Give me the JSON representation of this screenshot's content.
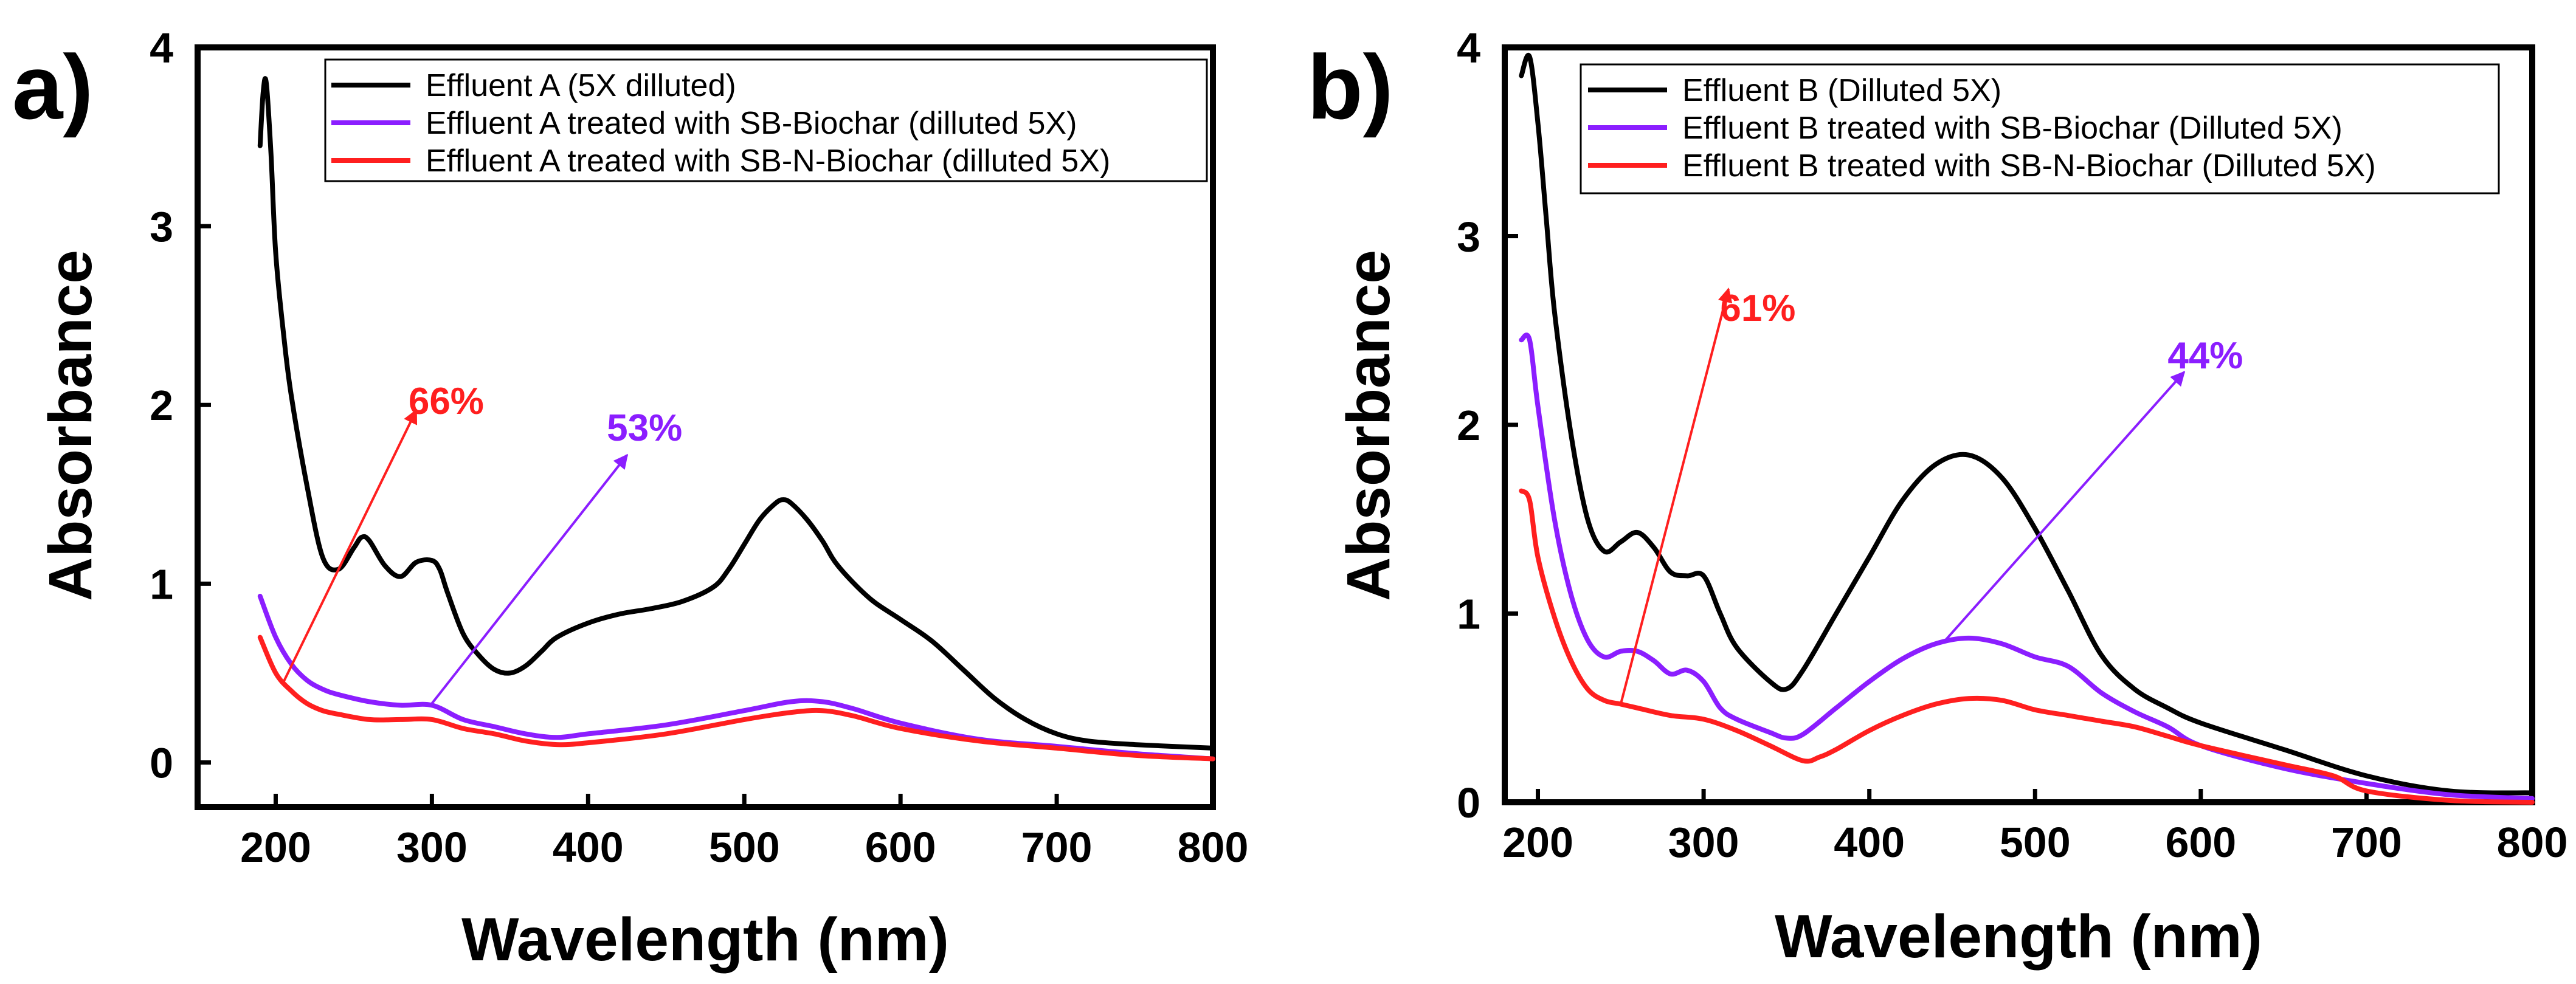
{
  "colors": {
    "black": "#000000",
    "purple": "#8B1EFF",
    "red": "#FF1F1F"
  },
  "chart_data": [
    {
      "type": "line",
      "panel_label": "a)",
      "xlabel": "Wavelength (nm)",
      "ylabel": "Absorbance",
      "xlim": [
        150,
        800
      ],
      "ylim": [
        -0.25,
        4
      ],
      "xticks": [
        200,
        300,
        400,
        500,
        600,
        700,
        800
      ],
      "yticks": [
        0,
        1,
        2,
        3,
        4
      ],
      "legend_position": "top-right",
      "series": [
        {
          "name": "Effluent A (5X dilluted)",
          "color": "#000000",
          "x": [
            190,
            192,
            194,
            197,
            200,
            205,
            210,
            220,
            230,
            240,
            250,
            255,
            260,
            270,
            280,
            290,
            300,
            305,
            310,
            320,
            330,
            340,
            350,
            360,
            370,
            380,
            400,
            420,
            440,
            460,
            480,
            490,
            500,
            510,
            520,
            525,
            530,
            540,
            550,
            560,
            580,
            600,
            620,
            640,
            660,
            680,
            700,
            720,
            750,
            800
          ],
          "y": [
            3.45,
            3.75,
            3.8,
            3.4,
            2.85,
            2.4,
            2.05,
            1.55,
            1.15,
            1.08,
            1.2,
            1.26,
            1.24,
            1.1,
            1.04,
            1.12,
            1.13,
            1.08,
            0.95,
            0.72,
            0.6,
            0.52,
            0.5,
            0.54,
            0.62,
            0.7,
            0.78,
            0.83,
            0.86,
            0.9,
            0.98,
            1.08,
            1.22,
            1.36,
            1.45,
            1.47,
            1.45,
            1.36,
            1.24,
            1.1,
            0.92,
            0.8,
            0.68,
            0.52,
            0.36,
            0.24,
            0.16,
            0.12,
            0.1,
            0.08
          ]
        },
        {
          "name": "Effluent A treated with SB-Biochar (dilluted 5X)",
          "color": "#8B1EFF",
          "x": [
            190,
            200,
            210,
            220,
            230,
            240,
            260,
            280,
            300,
            320,
            340,
            360,
            380,
            400,
            450,
            500,
            530,
            550,
            570,
            600,
            650,
            700,
            750,
            800
          ],
          "y": [
            0.93,
            0.7,
            0.55,
            0.46,
            0.41,
            0.38,
            0.34,
            0.32,
            0.32,
            0.24,
            0.2,
            0.16,
            0.14,
            0.16,
            0.21,
            0.29,
            0.34,
            0.34,
            0.3,
            0.22,
            0.13,
            0.09,
            0.05,
            0.02
          ]
        },
        {
          "name": "Effluent A treated with SB-N-Biochar (dilluted 5X)",
          "color": "#FF1F1F",
          "x": [
            190,
            200,
            210,
            220,
            230,
            240,
            260,
            280,
            300,
            320,
            340,
            360,
            380,
            400,
            450,
            500,
            530,
            550,
            570,
            600,
            650,
            700,
            750,
            800
          ],
          "y": [
            0.7,
            0.5,
            0.4,
            0.33,
            0.29,
            0.27,
            0.24,
            0.24,
            0.24,
            0.19,
            0.16,
            0.12,
            0.1,
            0.11,
            0.16,
            0.24,
            0.28,
            0.29,
            0.26,
            0.19,
            0.12,
            0.08,
            0.04,
            0.02
          ]
        }
      ],
      "annotations": [
        {
          "text": "66%",
          "color": "#FF1F1F",
          "from": [
            205,
            0.45
          ],
          "to": [
            290,
            1.97
          ],
          "text_at": [
            285,
            1.95
          ]
        },
        {
          "text": "53%",
          "color": "#8B1EFF",
          "from": [
            300,
            0.33
          ],
          "to": [
            425,
            1.72
          ],
          "text_at": [
            412,
            1.8
          ]
        }
      ]
    },
    {
      "type": "line",
      "panel_label": "b)",
      "xlabel": "Wavelength (nm)",
      "ylabel": "Absorbance",
      "xlim": [
        180,
        800
      ],
      "ylim": [
        0,
        4
      ],
      "xticks": [
        200,
        300,
        400,
        500,
        600,
        700,
        800
      ],
      "yticks": [
        0,
        1,
        2,
        3,
        4
      ],
      "legend_position": "top-right",
      "series": [
        {
          "name": "Effluent B (Dilluted 5X)",
          "color": "#000000",
          "x": [
            190,
            195,
            200,
            205,
            210,
            220,
            230,
            240,
            250,
            260,
            270,
            280,
            290,
            300,
            310,
            320,
            340,
            350,
            360,
            380,
            400,
            420,
            440,
            460,
            480,
            500,
            520,
            540,
            560,
            580,
            600,
            650,
            700,
            750,
            800
          ],
          "y": [
            3.85,
            3.95,
            3.6,
            3.1,
            2.6,
            1.95,
            1.5,
            1.33,
            1.38,
            1.43,
            1.35,
            1.22,
            1.2,
            1.2,
            1.0,
            0.82,
            0.64,
            0.6,
            0.7,
            1.0,
            1.3,
            1.6,
            1.79,
            1.84,
            1.72,
            1.45,
            1.12,
            0.78,
            0.6,
            0.5,
            0.42,
            0.28,
            0.14,
            0.06,
            0.05
          ]
        },
        {
          "name": "Effluent B treated with SB-Biochar (Dilluted 5X)",
          "color": "#8B1EFF",
          "x": [
            190,
            195,
            200,
            210,
            220,
            230,
            240,
            250,
            260,
            270,
            280,
            290,
            300,
            310,
            320,
            340,
            350,
            360,
            380,
            400,
            420,
            440,
            460,
            480,
            500,
            520,
            540,
            560,
            580,
            600,
            650,
            700,
            750,
            800
          ],
          "y": [
            2.45,
            2.45,
            2.1,
            1.5,
            1.1,
            0.86,
            0.77,
            0.8,
            0.8,
            0.75,
            0.68,
            0.7,
            0.64,
            0.5,
            0.44,
            0.37,
            0.34,
            0.36,
            0.5,
            0.64,
            0.76,
            0.84,
            0.87,
            0.84,
            0.77,
            0.72,
            0.58,
            0.48,
            0.4,
            0.3,
            0.18,
            0.1,
            0.04,
            0.02
          ]
        },
        {
          "name": "Effluent B treated with SB-N-Biochar (Dilluted 5X)",
          "color": "#FF1F1F",
          "x": [
            190,
            195,
            200,
            210,
            220,
            230,
            240,
            250,
            260,
            280,
            300,
            320,
            340,
            360,
            370,
            380,
            400,
            420,
            440,
            460,
            480,
            500,
            520,
            540,
            560,
            580,
            600,
            650,
            680,
            700,
            750,
            800
          ],
          "y": [
            1.65,
            1.6,
            1.3,
            0.98,
            0.75,
            0.6,
            0.54,
            0.52,
            0.5,
            0.46,
            0.44,
            0.38,
            0.3,
            0.22,
            0.24,
            0.28,
            0.38,
            0.46,
            0.52,
            0.55,
            0.54,
            0.49,
            0.46,
            0.43,
            0.4,
            0.35,
            0.3,
            0.2,
            0.14,
            0.06,
            0.01,
            0.0
          ]
        }
      ],
      "annotations": [
        {
          "text": "61%",
          "color": "#FF1F1F",
          "from": [
            250,
            0.52
          ],
          "to": [
            315,
            2.72
          ],
          "text_at": [
            310,
            2.55
          ]
        },
        {
          "text": "44%",
          "color": "#8B1EFF",
          "from": [
            445,
            0.85
          ],
          "to": [
            590,
            2.28
          ],
          "text_at": [
            580,
            2.3
          ]
        }
      ]
    }
  ]
}
